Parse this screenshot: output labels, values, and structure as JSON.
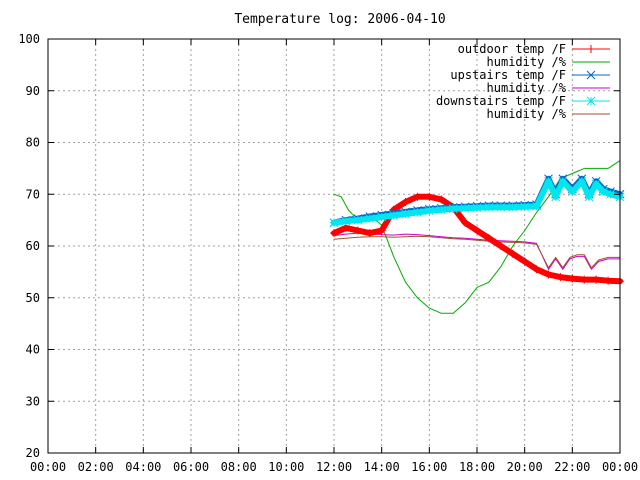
{
  "chart_data": {
    "type": "line",
    "title": "Temperature log: 2006-04-10",
    "xlabel": "",
    "ylabel": "",
    "xlim": [
      0,
      24
    ],
    "ylim": [
      20,
      100
    ],
    "x_ticks": [
      0,
      2,
      4,
      6,
      8,
      10,
      12,
      14,
      16,
      18,
      20,
      22,
      24
    ],
    "x_tick_labels": [
      "00:00",
      "02:00",
      "04:00",
      "06:00",
      "08:00",
      "10:00",
      "12:00",
      "14:00",
      "16:00",
      "18:00",
      "20:00",
      "22:00",
      "00:00"
    ],
    "y_ticks": [
      20,
      30,
      40,
      50,
      60,
      70,
      80,
      90,
      100
    ],
    "grid": true,
    "legend_position": "top-right",
    "series": [
      {
        "name": "outdoor temp /F",
        "color": "#ff0000",
        "marker": "plus",
        "x": [
          12.0,
          12.5,
          13.0,
          13.5,
          14.0,
          14.5,
          15.0,
          15.5,
          16.0,
          16.5,
          17.0,
          17.5,
          18.0,
          18.5,
          19.0,
          19.5,
          20.0,
          20.5,
          21.0,
          21.5,
          22.0,
          22.5,
          23.0,
          23.5,
          24.0
        ],
        "values": [
          62.5,
          63.5,
          63.0,
          62.5,
          63.0,
          67.0,
          68.5,
          69.5,
          69.5,
          69.0,
          67.5,
          64.5,
          63.0,
          61.5,
          60.0,
          58.5,
          57.0,
          55.5,
          54.5,
          54.0,
          53.7,
          53.5,
          53.5,
          53.3,
          53.2
        ]
      },
      {
        "name": "humidity /%",
        "color": "#00aa00",
        "marker": "",
        "x": [
          12.0,
          12.3,
          12.6,
          13.0,
          13.5,
          14.0,
          14.5,
          15.0,
          15.5,
          16.0,
          16.5,
          17.0,
          17.5,
          18.0,
          18.5,
          19.0,
          19.5,
          20.0,
          20.5,
          21.0,
          21.5,
          22.0,
          22.5,
          23.0,
          23.5,
          24.0
        ],
        "values": [
          70.0,
          69.5,
          67.0,
          65.0,
          66.0,
          64.0,
          58.0,
          53.0,
          50.0,
          48.0,
          47.0,
          47.0,
          49.0,
          52.0,
          53.0,
          56.0,
          60.0,
          63.0,
          66.5,
          69.5,
          73.0,
          74.0,
          75.0,
          75.0,
          75.0,
          76.5
        ]
      },
      {
        "name": "upstairs temp /F",
        "color": "#0066cc",
        "marker": "cross",
        "x": [
          12.0,
          12.5,
          13.0,
          13.5,
          14.0,
          14.5,
          15.0,
          15.5,
          16.0,
          16.5,
          17.0,
          17.5,
          18.0,
          18.5,
          19.0,
          19.5,
          20.0,
          20.5,
          21.0,
          21.3,
          21.6,
          22.0,
          22.4,
          22.7,
          23.0,
          23.3,
          23.6,
          24.0
        ],
        "values": [
          64.5,
          65.0,
          65.3,
          65.7,
          66.0,
          66.3,
          66.6,
          66.9,
          67.1,
          67.3,
          67.5,
          67.6,
          67.7,
          67.8,
          67.8,
          67.8,
          67.9,
          68.0,
          73.0,
          70.0,
          73.0,
          71.0,
          73.0,
          70.0,
          72.5,
          71.0,
          70.5,
          70.0
        ]
      },
      {
        "name": "humidity /%",
        "color": "#cc00cc",
        "marker": "",
        "x": [
          12.0,
          12.5,
          13.0,
          13.5,
          14.0,
          14.5,
          15.0,
          15.5,
          16.0,
          16.5,
          17.0,
          17.5,
          18.0,
          18.5,
          19.0,
          19.5,
          20.0,
          20.5,
          21.0,
          21.3,
          21.6,
          21.9,
          22.2,
          22.5,
          22.8,
          23.1,
          23.5,
          24.0
        ],
        "values": [
          62.0,
          62.3,
          62.5,
          62.4,
          62.2,
          62.1,
          62.3,
          62.2,
          62.0,
          61.8,
          61.6,
          61.5,
          61.3,
          61.1,
          61.0,
          60.9,
          60.8,
          60.5,
          55.5,
          57.5,
          55.5,
          57.5,
          58.0,
          58.0,
          55.5,
          57.0,
          57.5,
          57.5
        ]
      },
      {
        "name": "downstairs temp /F",
        "color": "#00e5ee",
        "marker": "star",
        "x": [
          12.0,
          12.5,
          13.0,
          13.5,
          14.0,
          14.5,
          15.0,
          15.5,
          16.0,
          16.5,
          17.0,
          17.5,
          18.0,
          18.5,
          19.0,
          19.5,
          20.0,
          20.5,
          21.0,
          21.3,
          21.6,
          22.0,
          22.4,
          22.7,
          23.0,
          23.3,
          23.6,
          24.0
        ],
        "values": [
          64.5,
          64.8,
          65.0,
          65.3,
          65.6,
          65.9,
          66.2,
          66.5,
          66.8,
          67.0,
          67.2,
          67.3,
          67.4,
          67.5,
          67.5,
          67.5,
          67.6,
          67.7,
          72.5,
          69.5,
          72.5,
          70.5,
          72.5,
          69.5,
          72.0,
          70.5,
          70.0,
          69.5
        ]
      },
      {
        "name": "humidity /%",
        "color": "#a0522d",
        "marker": "",
        "x": [
          12.0,
          12.5,
          13.0,
          13.5,
          14.0,
          14.5,
          15.0,
          15.5,
          16.0,
          16.5,
          17.0,
          17.5,
          18.0,
          18.5,
          19.0,
          19.5,
          20.0,
          20.5,
          21.0,
          21.3,
          21.6,
          21.9,
          22.2,
          22.5,
          22.8,
          23.1,
          23.5,
          24.0
        ],
        "values": [
          61.3,
          61.5,
          61.7,
          61.8,
          61.8,
          61.7,
          61.8,
          61.9,
          61.8,
          61.6,
          61.4,
          61.3,
          61.1,
          60.9,
          60.8,
          60.7,
          60.6,
          60.3,
          55.8,
          57.8,
          55.8,
          57.8,
          58.3,
          58.3,
          55.8,
          57.3,
          57.8,
          57.8
        ]
      }
    ]
  }
}
